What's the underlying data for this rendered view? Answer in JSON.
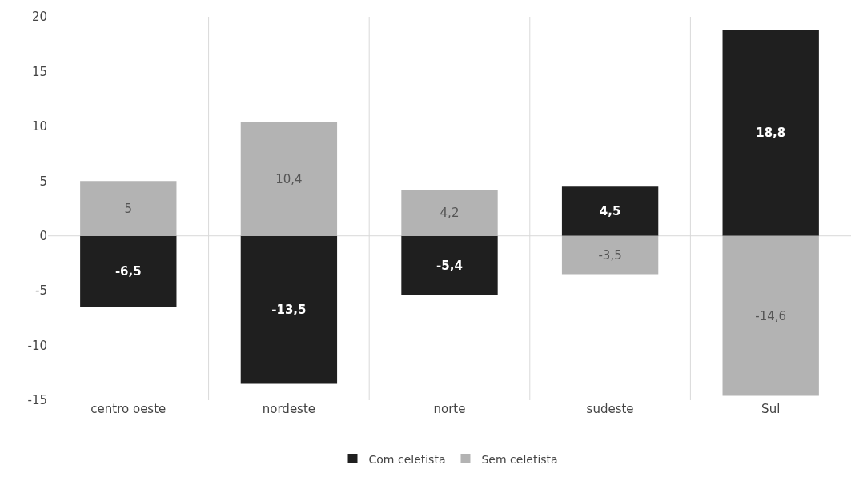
{
  "chart_data": {
    "type": "bar",
    "stacked": true,
    "categories": [
      "centro oeste",
      "nordeste",
      "norte",
      "sudeste",
      "Sul"
    ],
    "series": [
      {
        "name": "Com celetista",
        "color": "#1f1f1f",
        "values": [
          -6.5,
          -13.5,
          -5.4,
          4.5,
          18.8
        ],
        "value_labels": [
          "-6,5",
          "-13,5",
          "-5,4",
          "4,5",
          "18,8"
        ]
      },
      {
        "name": "Sem celetista",
        "color": "#b3b3b3",
        "values": [
          5,
          10.4,
          4.2,
          -3.5,
          -14.6
        ],
        "value_labels": [
          "5",
          "10,4",
          "4,2",
          "-3,5",
          "-14,6"
        ]
      }
    ],
    "ylim": [
      -15,
      20
    ],
    "yticks": [
      -15,
      -10,
      -5,
      0,
      5,
      10,
      15,
      20
    ],
    "grid": "x",
    "legend": "bottom",
    "ref_lines": [
      {
        "axis": "y",
        "value": 0,
        "color": "#d9d9d9"
      }
    ]
  }
}
